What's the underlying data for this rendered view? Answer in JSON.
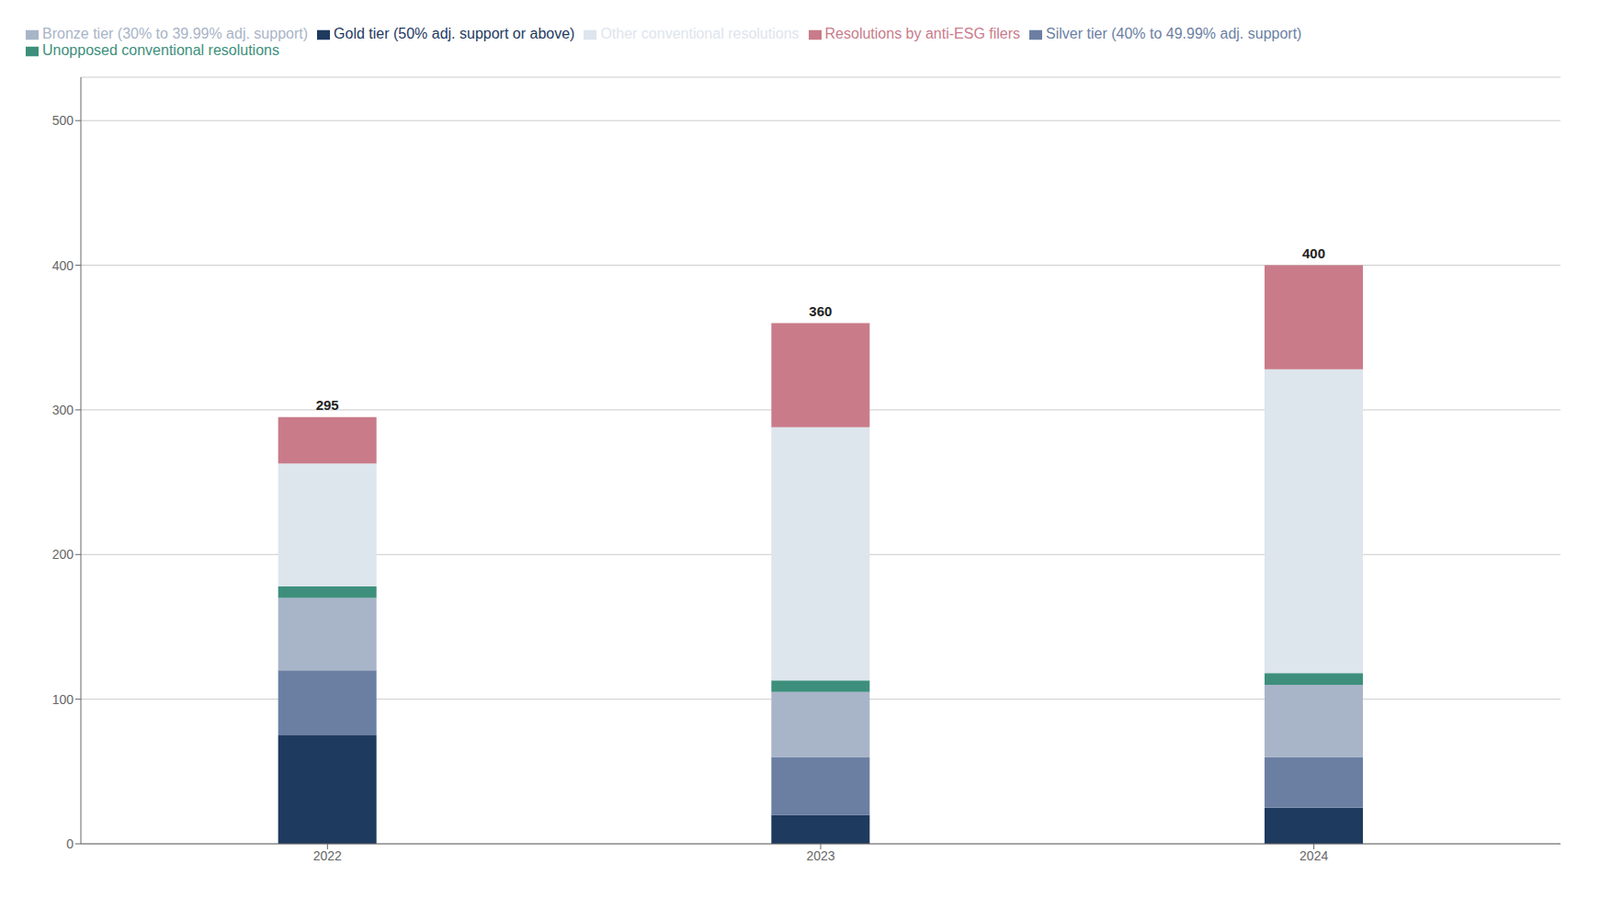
{
  "chart_data": {
    "type": "bar",
    "stacked": true,
    "categories": [
      "2022",
      "2023",
      "2024"
    ],
    "series": [
      {
        "name": "Gold tier (50% adj. support or above)",
        "color": "#1e3a5f",
        "values": [
          75,
          20,
          25
        ]
      },
      {
        "name": "Silver tier (40% to 49.99% adj. support)",
        "color": "#6b7fa3",
        "values": [
          45,
          40,
          35
        ]
      },
      {
        "name": "Bronze tier (30% to 39.99% adj. support)",
        "color": "#a8b4c8",
        "values": [
          50,
          45,
          50
        ]
      },
      {
        "name": "Unopposed conventional resolutions",
        "color": "#3d8f7c",
        "values": [
          8,
          8,
          8
        ]
      },
      {
        "name": "Other conventional resolutions",
        "color": "#dde5ed",
        "values": [
          85,
          175,
          210
        ]
      },
      {
        "name": "Resolutions by anti-ESG filers",
        "color": "#c97b8a",
        "values": [
          32,
          72,
          72
        ]
      }
    ],
    "totals": [
      295,
      360,
      400
    ],
    "ylim": [
      0,
      530
    ],
    "yticks": [
      0,
      100,
      200,
      300,
      400,
      500
    ],
    "grid": true,
    "legend": "top"
  }
}
